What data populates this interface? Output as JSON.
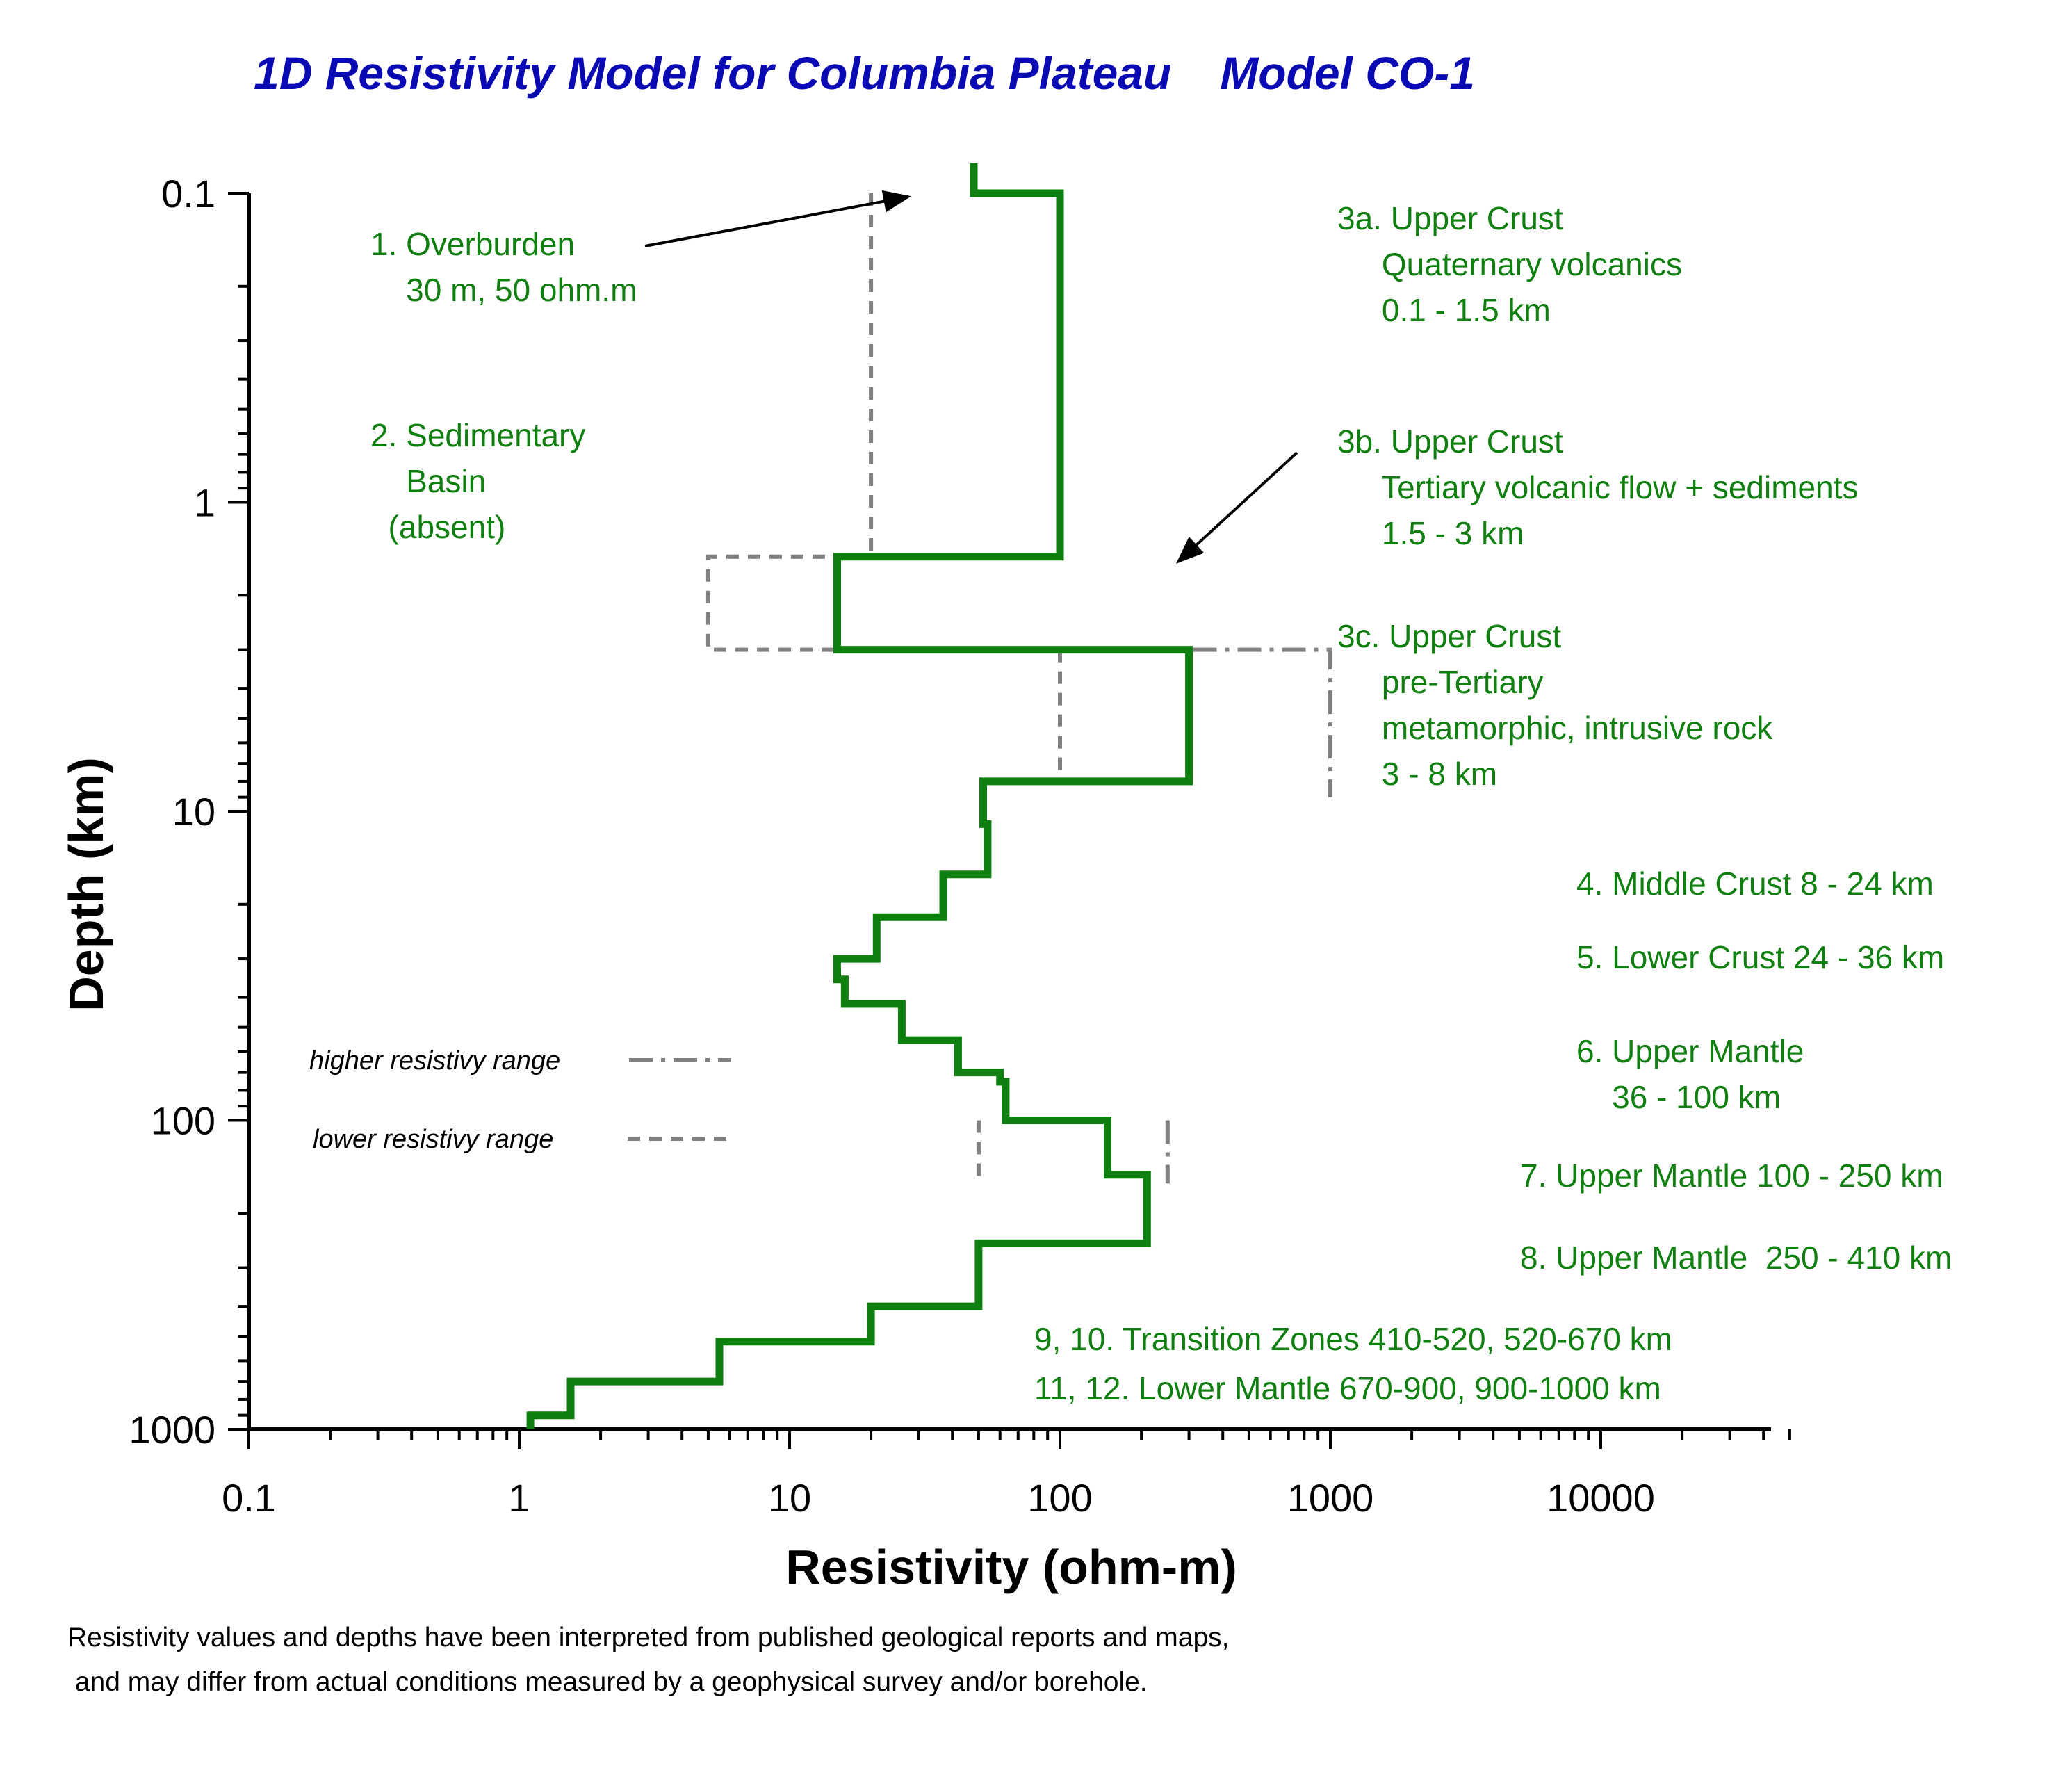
{
  "colors": {
    "title": "#0a0ab4",
    "model": "#0f800f",
    "range": "#808080",
    "annotation": "#0f800f",
    "axis": "#000000"
  },
  "chart_data": {
    "type": "line",
    "title": "1D Resistivity Model for Columbia Plateau",
    "model_label": "Model CO-1",
    "xlabel": "Resistivity (ohm-m)",
    "ylabel": "Depth (km)",
    "x_scale": "log",
    "y_scale": "log",
    "y_inverted": true,
    "xlim": [
      0.1,
      50000
    ],
    "ylim": [
      0.1,
      1000
    ],
    "x_ticks": [
      "0.1",
      "1",
      "10",
      "100",
      "1000",
      "10000"
    ],
    "y_ticks": [
      "0.1",
      "1",
      "10",
      "100",
      "1000"
    ],
    "series": [
      {
        "type": "step-profile",
        "x": [
          48,
          48,
          100,
          100,
          15,
          15,
          300,
          300,
          52,
          52,
          54,
          54,
          37,
          37,
          21,
          21,
          15,
          15,
          16,
          16,
          26,
          26,
          42,
          42,
          60,
          60,
          63,
          63,
          150,
          150,
          210,
          210,
          50,
          50,
          20,
          20,
          5.5,
          5.5,
          1.55,
          1.55,
          1.1,
          1.1
        ],
        "y": [
          0.08,
          0.1,
          0.1,
          1.5,
          1.5,
          3,
          3,
          8,
          8,
          11,
          11,
          16,
          16,
          22,
          22,
          30,
          30,
          35,
          35,
          42,
          42,
          55,
          55,
          70,
          70,
          75,
          75,
          100,
          100,
          150,
          150,
          250,
          250,
          400,
          400,
          520,
          520,
          700,
          700,
          900,
          900,
          1000
        ]
      },
      {
        "name": "higher resistivy range",
        "style": "dash-dot",
        "x": [
          15,
          1000,
          1000
        ],
        "y": [
          3,
          3,
          9
        ]
      },
      {
        "name": "lower resistivy range",
        "style": "dash",
        "x": [
          20,
          20,
          5,
          5,
          20
        ],
        "y": [
          0.1,
          1.5,
          1.5,
          3,
          3
        ]
      },
      {
        "style": "dash",
        "x": [
          100,
          100
        ],
        "y": [
          3,
          8
        ]
      },
      {
        "style": "dash",
        "x": [
          50,
          50
        ],
        "y": [
          100,
          160
        ]
      },
      {
        "style": "dash-dot",
        "x": [
          250,
          250
        ],
        "y": [
          100,
          160
        ]
      }
    ],
    "annotations": [
      [
        "1. Overburden",
        "    30 m, 50 ohm.m"
      ],
      [
        "2. Sedimentary",
        "    Basin",
        "  (absent)"
      ],
      [
        "3a. Upper Crust",
        "     Quaternary volcanics",
        "     0.1 - 1.5 km"
      ],
      [
        "3b. Upper Crust",
        "     Tertiary volcanic flow + sediments",
        "     1.5 - 3 km"
      ],
      [
        "3c. Upper Crust",
        "     pre-Tertiary",
        "     metamorphic, intrusive rock",
        "     3 - 8 km"
      ],
      [
        "4. Middle Crust 8 - 24 km"
      ],
      [
        "5. Lower Crust 24 - 36 km"
      ],
      [
        "6. Upper Mantle",
        "    36 - 100 km"
      ],
      [
        "7. Upper Mantle 100 - 250 km"
      ],
      [
        "8. Upper Mantle  250 - 410 km"
      ],
      [
        "9, 10. Transition Zones 410-520, 520-670 km"
      ],
      [
        "11, 12. Lower Mantle 670-900, 900-1000 km"
      ]
    ],
    "legend": [
      "higher resistivy range",
      "lower resistivy range"
    ],
    "legend_position": "lower-left"
  },
  "footnote": [
    "Resistivity values and depths have been interpreted from published geological reports and maps,",
    " and may differ from actual conditions measured by a geophysical survey and/or borehole."
  ]
}
